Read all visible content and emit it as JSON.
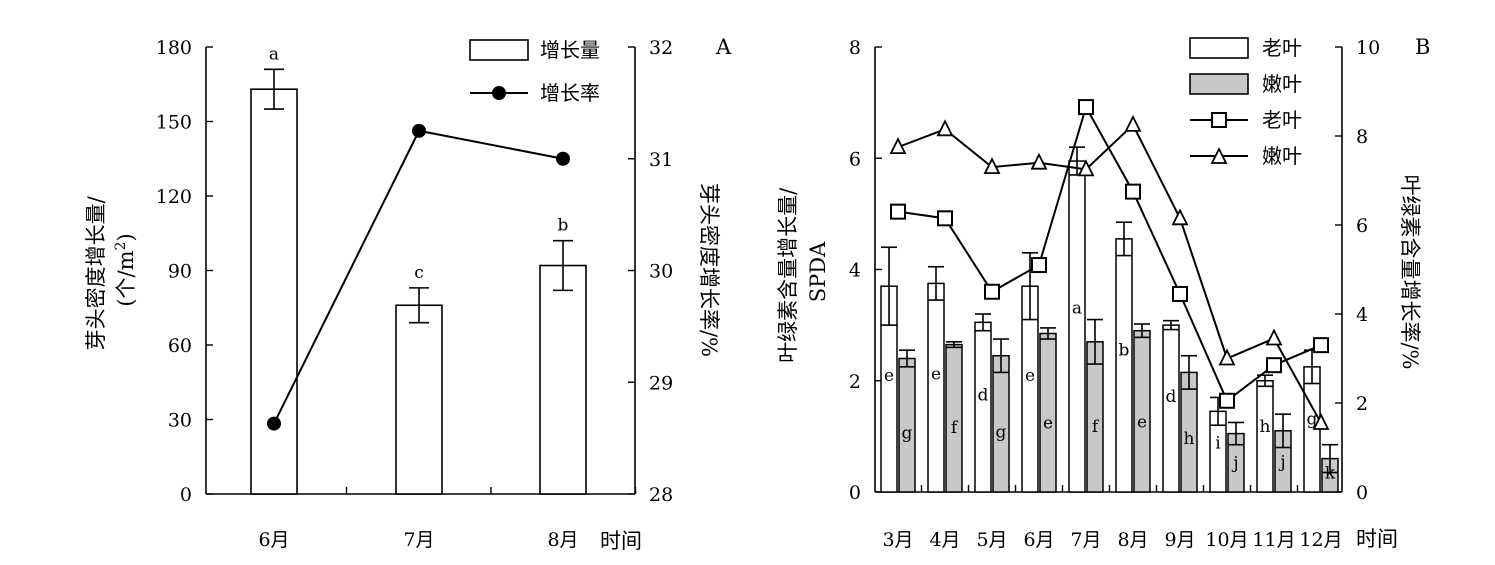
{
  "chart_data": [
    {
      "panel": "A",
      "type": "bar+line",
      "categories": [
        "6月",
        "7月",
        "8月"
      ],
      "xlabel": "时间",
      "ylabel_left": [
        "芽头密度增长量/",
        "(个/m",
        "2",
        ")"
      ],
      "ylabel_right": "芽头密度增长率/%",
      "ylim_left": [
        0,
        180
      ],
      "yticks_left": [
        0,
        30,
        60,
        90,
        120,
        150,
        180
      ],
      "ylim_right": [
        28,
        32
      ],
      "yticks_right": [
        28,
        29,
        30,
        31,
        32
      ],
      "series": [
        {
          "name": "增长量",
          "kind": "bar",
          "axis": "left",
          "values": [
            163,
            76,
            92
          ],
          "errors": [
            8,
            7,
            10
          ],
          "letters": [
            "a",
            "c",
            "b"
          ]
        },
        {
          "name": "增长率",
          "kind": "line",
          "marker": "filled-circle",
          "axis": "right",
          "values": [
            28.63,
            31.25,
            31.0
          ]
        }
      ],
      "legend_position": "top-right"
    },
    {
      "panel": "B",
      "type": "bar+line",
      "categories": [
        "3月",
        "4月",
        "5月",
        "6月",
        "7月",
        "8月",
        "9月",
        "10月",
        "11月",
        "12月"
      ],
      "xlabel": "时间",
      "ylabel_left": [
        "叶绿素含量增长量/",
        "SPDA"
      ],
      "ylabel_right": "叶绿素含量增长率/%",
      "ylim_left": [
        0,
        8
      ],
      "yticks_left": [
        0,
        2,
        4,
        6,
        8
      ],
      "ylim_right": [
        0,
        10
      ],
      "yticks_right": [
        0,
        2,
        4,
        6,
        8,
        10
      ],
      "series": [
        {
          "name": "老叶",
          "kind": "bar",
          "fill": "#ffffff",
          "axis": "left",
          "values": [
            3.7,
            3.75,
            3.05,
            3.7,
            5.95,
            4.55,
            3.0,
            1.45,
            2.0,
            2.25
          ],
          "errors": [
            0.7,
            0.3,
            0.15,
            0.6,
            0.25,
            0.3,
            0.08,
            0.25,
            0.1,
            0.3
          ],
          "letters": [
            "e",
            "e",
            "d",
            "e",
            "a",
            "b",
            "d",
            "i",
            "h",
            "g"
          ]
        },
        {
          "name": "嫩叶",
          "kind": "bar",
          "fill": "#c8c8c8",
          "axis": "left",
          "values": [
            2.4,
            2.65,
            2.45,
            2.85,
            2.7,
            2.9,
            2.15,
            1.05,
            1.1,
            0.6
          ],
          "errors": [
            0.15,
            0.05,
            0.3,
            0.1,
            0.4,
            0.12,
            0.3,
            0.2,
            0.3,
            0.25
          ],
          "letters": [
            "g",
            "f",
            "g",
            "e",
            "f",
            "e",
            "h",
            "j",
            "j",
            "k"
          ]
        },
        {
          "name": "老叶",
          "kind": "line",
          "marker": "open-square",
          "axis": "right",
          "values": [
            6.3,
            6.15,
            4.5,
            5.1,
            8.65,
            6.75,
            4.45,
            2.05,
            2.85,
            3.3
          ]
        },
        {
          "name": "嫩叶",
          "kind": "line",
          "marker": "open-triangle",
          "axis": "right",
          "values": [
            7.75,
            8.15,
            7.3,
            7.4,
            7.25,
            8.25,
            6.15,
            3.0,
            3.45,
            1.55
          ]
        }
      ],
      "legend_position": "top-right"
    }
  ]
}
